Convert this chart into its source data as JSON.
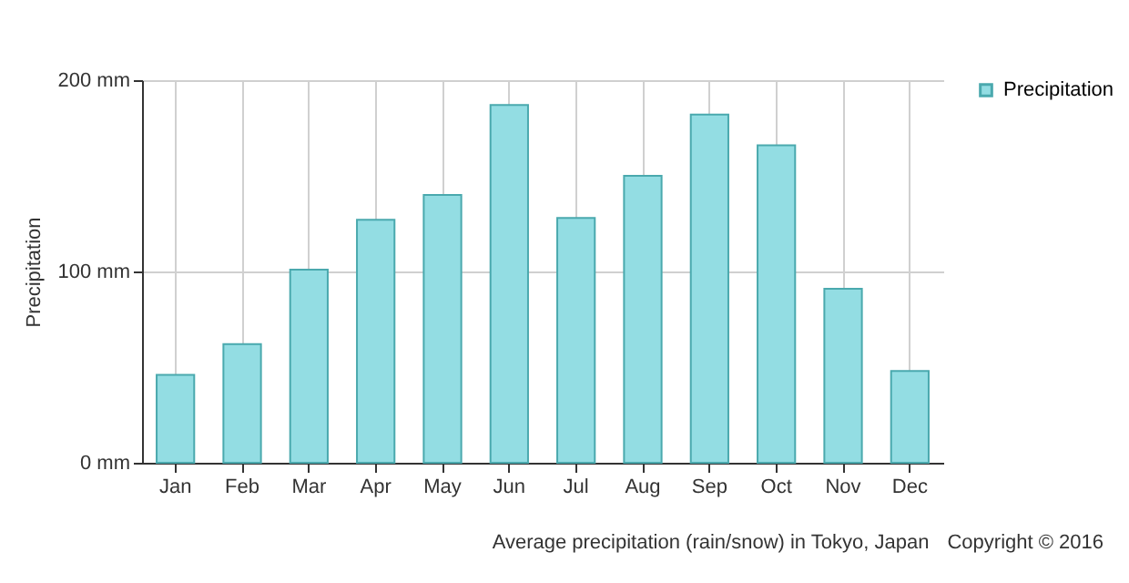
{
  "chart_data": {
    "type": "bar",
    "ylabel": "Precipitation",
    "categories": [
      "Jan",
      "Feb",
      "Mar",
      "Apr",
      "May",
      "Jun",
      "Jul",
      "Aug",
      "Sep",
      "Oct",
      "Nov",
      "Dec"
    ],
    "series": [
      {
        "name": "Precipitation",
        "color": "#93dde3",
        "values": [
          46,
          62,
          101,
          127,
          140,
          187,
          128,
          150,
          182,
          166,
          91,
          48
        ]
      }
    ],
    "ylim": [
      0,
      200
    ],
    "yticks": [
      {
        "value": 0,
        "label": "0 mm"
      },
      {
        "value": 100,
        "label": "100 mm"
      },
      {
        "value": 200,
        "label": "200 mm"
      }
    ],
    "grid": true,
    "legend": "top right",
    "annotations": [
      "Average precipitation (rain/snow) in Tokyo, Japan",
      "Copyright © 2016"
    ]
  }
}
